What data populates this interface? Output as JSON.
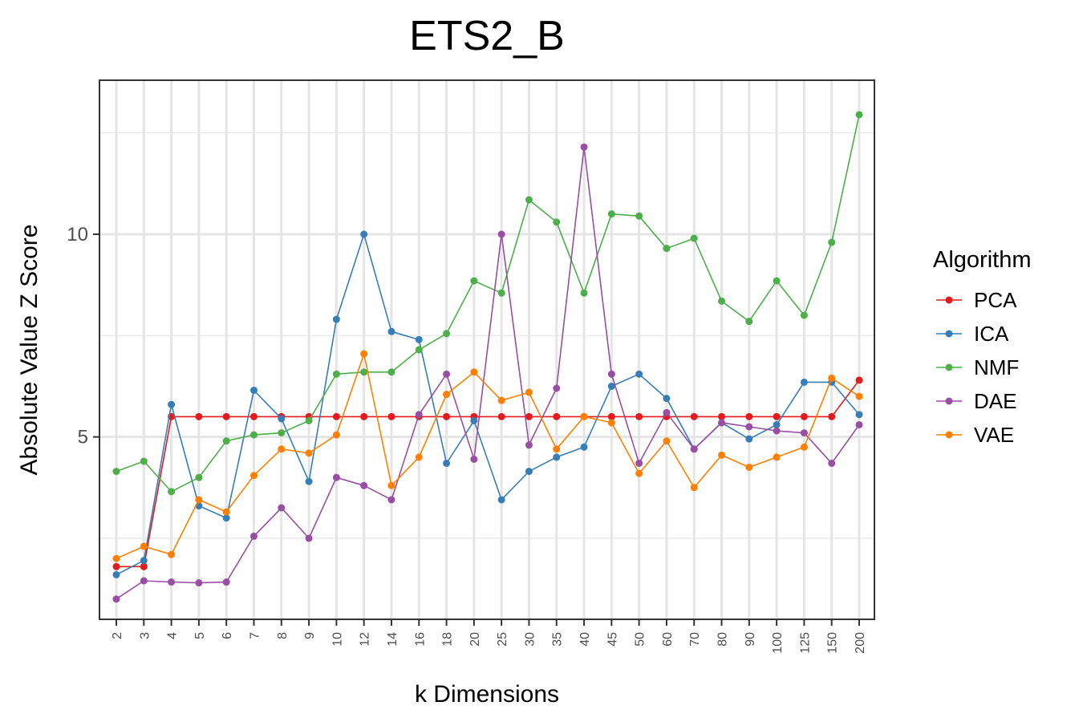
{
  "chart_data": {
    "type": "line",
    "title": "ETS2_B",
    "xlabel": "k Dimensions",
    "ylabel": "Absolute Value Z Score",
    "x": [
      "2",
      "3",
      "4",
      "5",
      "6",
      "7",
      "8",
      "9",
      "10",
      "12",
      "14",
      "16",
      "18",
      "20",
      "25",
      "30",
      "35",
      "40",
      "45",
      "50",
      "60",
      "70",
      "80",
      "90",
      "100",
      "125",
      "150",
      "200"
    ],
    "y_ticks": [
      5,
      10
    ],
    "ylim": [
      0.5,
      13.8
    ],
    "grid": true,
    "legend_title": "Algorithm",
    "legend_position": "right",
    "series": [
      {
        "name": "PCA",
        "color": "#e41a1c",
        "values": [
          1.8,
          1.8,
          5.5,
          5.5,
          5.5,
          5.5,
          5.5,
          5.5,
          5.5,
          5.5,
          5.5,
          5.5,
          5.5,
          5.5,
          5.5,
          5.5,
          5.5,
          5.5,
          5.5,
          5.5,
          5.5,
          5.5,
          5.5,
          5.5,
          5.5,
          5.5,
          5.5,
          6.4
        ]
      },
      {
        "name": "ICA",
        "color": "#377eb8",
        "values": [
          1.6,
          1.95,
          5.8,
          3.3,
          3.0,
          6.15,
          5.45,
          3.9,
          7.9,
          10.0,
          7.6,
          7.4,
          4.35,
          5.4,
          3.45,
          4.15,
          4.5,
          4.75,
          6.25,
          6.55,
          5.95,
          4.7,
          5.35,
          4.95,
          5.3,
          6.35,
          6.35,
          5.55
        ]
      },
      {
        "name": "NMF",
        "color": "#4daf4a",
        "values": [
          4.15,
          4.4,
          3.65,
          4.0,
          4.9,
          5.05,
          5.1,
          5.4,
          6.55,
          6.6,
          6.6,
          7.15,
          7.55,
          8.85,
          8.55,
          10.85,
          10.3,
          8.55,
          10.5,
          10.45,
          9.65,
          9.9,
          8.35,
          7.85,
          8.85,
          8.0,
          9.8,
          12.95
        ]
      },
      {
        "name": "DAE",
        "color": "#984ea3",
        "values": [
          1.0,
          1.45,
          1.42,
          1.4,
          1.42,
          2.55,
          3.25,
          2.5,
          4.0,
          3.8,
          3.45,
          5.55,
          6.55,
          4.45,
          10.0,
          4.8,
          6.2,
          12.15,
          6.55,
          4.35,
          5.6,
          4.7,
          5.35,
          5.25,
          5.15,
          5.1,
          4.35,
          5.3
        ]
      },
      {
        "name": "VAE",
        "color": "#ff7f00",
        "values": [
          2.0,
          2.3,
          2.1,
          3.45,
          3.15,
          4.05,
          4.7,
          4.6,
          5.05,
          7.05,
          3.8,
          4.5,
          6.05,
          6.6,
          5.9,
          6.1,
          4.7,
          5.5,
          5.35,
          4.1,
          4.9,
          3.75,
          4.55,
          4.25,
          4.5,
          4.75,
          6.45,
          6.0
        ]
      }
    ]
  }
}
